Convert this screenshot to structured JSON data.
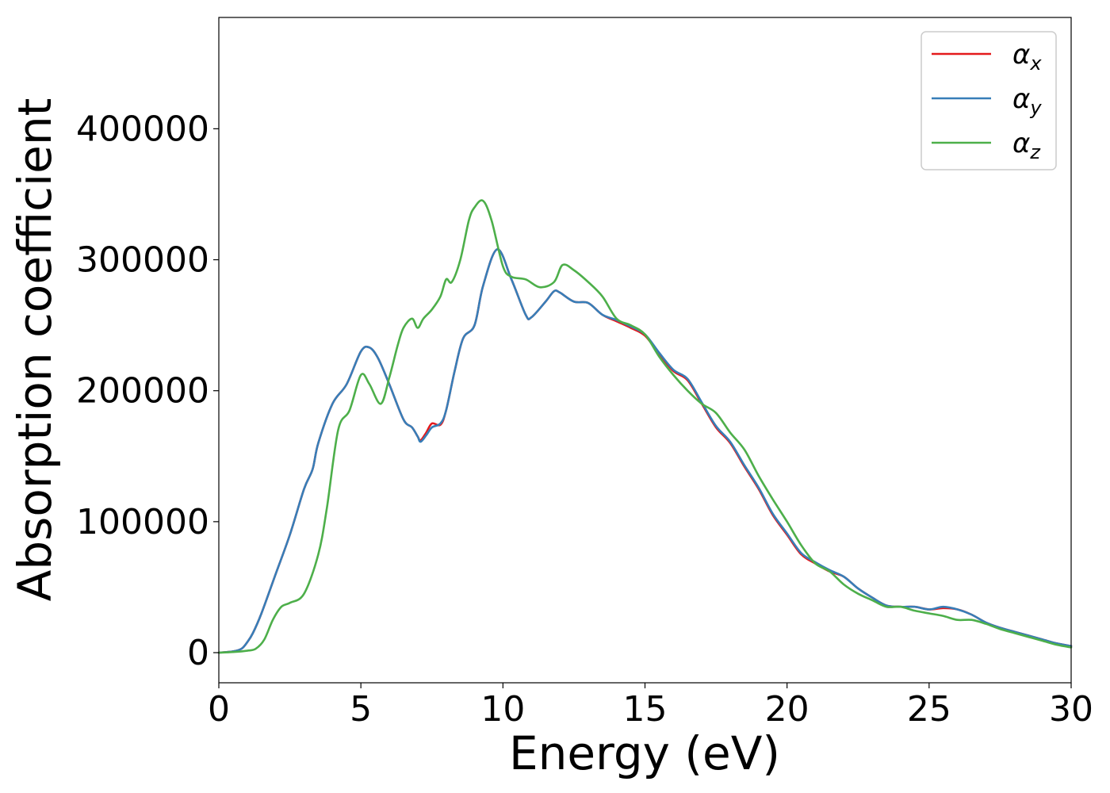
{
  "chart_data": {
    "type": "line",
    "xlabel": "Energy (eV)",
    "ylabel": "Absorption coefficient",
    "xlim": [
      0,
      30
    ],
    "ylim": [
      -23000,
      485000
    ],
    "xticks": [
      0,
      5,
      10,
      15,
      20,
      25,
      30
    ],
    "yticks": [
      0,
      100000,
      200000,
      300000,
      400000
    ],
    "grid": false,
    "legend_position": "top-right",
    "series": [
      {
        "name": "αx",
        "legend": {
          "base": "α",
          "sub": "x"
        },
        "color": "#e41a1c",
        "x": [
          0,
          0.5,
          0.8,
          1.0,
          1.2,
          1.5,
          2.0,
          2.5,
          3.0,
          3.3,
          3.5,
          4.0,
          4.5,
          5.0,
          5.3,
          5.6,
          6.0,
          6.5,
          6.8,
          7.0,
          7.1,
          7.3,
          7.5,
          7.8,
          8.0,
          8.3,
          8.6,
          9.0,
          9.3,
          9.8,
          10.3,
          10.8,
          11.0,
          11.5,
          11.8,
          12.0,
          12.5,
          13.0,
          13.5,
          14.0,
          14.5,
          15.0,
          15.5,
          16.0,
          16.5,
          17.0,
          17.5,
          18.0,
          18.5,
          19.0,
          19.5,
          20.0,
          20.5,
          21.0,
          21.5,
          22.0,
          22.5,
          23.0,
          23.5,
          24.0,
          24.5,
          25.0,
          25.5,
          26.0,
          26.5,
          27.0,
          27.5,
          28.0,
          28.5,
          29.0,
          29.5,
          30.0
        ],
        "values": [
          0,
          1000,
          3000,
          8000,
          15000,
          30000,
          60000,
          90000,
          125000,
          140000,
          160000,
          190000,
          205000,
          230000,
          233000,
          225000,
          205000,
          178000,
          172000,
          165000,
          162000,
          168000,
          175000,
          174000,
          185000,
          215000,
          240000,
          250000,
          280000,
          308000,
          285000,
          258000,
          256000,
          268000,
          276000,
          275000,
          268000,
          267000,
          258000,
          253000,
          248000,
          242000,
          228000,
          215000,
          208000,
          190000,
          172000,
          160000,
          142000,
          125000,
          105000,
          90000,
          75000,
          68000,
          62000,
          58000,
          49000,
          42000,
          36000,
          35000,
          35000,
          33000,
          34000,
          33000,
          29000,
          23000,
          19000,
          16000,
          13000,
          10000,
          7000,
          5000
        ]
      },
      {
        "name": "αy",
        "legend": {
          "base": "α",
          "sub": "y"
        },
        "color": "#377eb8",
        "x": [
          0,
          0.5,
          0.8,
          1.0,
          1.2,
          1.5,
          2.0,
          2.5,
          3.0,
          3.3,
          3.5,
          4.0,
          4.5,
          5.0,
          5.3,
          5.6,
          6.0,
          6.5,
          6.8,
          7.0,
          7.1,
          7.3,
          7.5,
          7.8,
          8.0,
          8.3,
          8.6,
          9.0,
          9.3,
          9.8,
          10.3,
          10.8,
          11.0,
          11.5,
          11.8,
          12.0,
          12.5,
          13.0,
          13.5,
          14.0,
          14.5,
          15.0,
          15.5,
          16.0,
          16.5,
          17.0,
          17.5,
          18.0,
          18.5,
          19.0,
          19.5,
          20.0,
          20.5,
          21.0,
          21.5,
          22.0,
          22.5,
          23.0,
          23.5,
          24.0,
          24.5,
          25.0,
          25.5,
          26.0,
          26.5,
          27.0,
          27.5,
          28.0,
          28.5,
          29.0,
          29.5,
          30.0
        ],
        "values": [
          0,
          1000,
          3000,
          8000,
          15000,
          30000,
          60000,
          90000,
          125000,
          140000,
          160000,
          190000,
          205000,
          230000,
          233000,
          225000,
          205000,
          178000,
          172000,
          165000,
          161000,
          166000,
          172000,
          175000,
          185000,
          215000,
          240000,
          250000,
          280000,
          308000,
          285000,
          258000,
          256000,
          268000,
          276000,
          275000,
          268000,
          267000,
          258000,
          254000,
          249000,
          243000,
          229000,
          216000,
          209000,
          191000,
          173000,
          161000,
          143000,
          126000,
          106000,
          91000,
          76000,
          69000,
          63000,
          58000,
          49000,
          42000,
          36000,
          35000,
          35000,
          33000,
          35000,
          33000,
          29000,
          23000,
          19000,
          16000,
          13000,
          10000,
          7000,
          5000
        ]
      },
      {
        "name": "αz",
        "legend": {
          "base": "α",
          "sub": "z"
        },
        "color": "#4daf4a",
        "x": [
          0,
          0.5,
          1.0,
          1.3,
          1.6,
          1.9,
          2.2,
          2.5,
          3.0,
          3.5,
          3.8,
          4.2,
          4.6,
          5.0,
          5.3,
          5.7,
          6.0,
          6.3,
          6.5,
          6.8,
          7.0,
          7.2,
          7.5,
          7.8,
          8.0,
          8.2,
          8.5,
          8.8,
          9.0,
          9.3,
          9.6,
          10.0,
          10.3,
          10.8,
          11.3,
          11.8,
          12.1,
          12.5,
          13.0,
          13.5,
          14.0,
          14.5,
          15.0,
          15.5,
          16.0,
          16.5,
          17.0,
          17.5,
          18.0,
          18.5,
          19.0,
          19.5,
          20.0,
          20.5,
          21.0,
          21.5,
          22.0,
          22.5,
          23.0,
          23.5,
          24.0,
          24.5,
          25.0,
          25.5,
          26.0,
          26.5,
          27.0,
          27.5,
          28.0,
          28.5,
          29.0,
          29.5,
          30.0
        ],
        "values": [
          0,
          500,
          1500,
          3000,
          10000,
          25000,
          35000,
          38000,
          45000,
          75000,
          110000,
          170000,
          185000,
          212000,
          205000,
          190000,
          210000,
          235000,
          248000,
          255000,
          248000,
          255000,
          262000,
          272000,
          285000,
          283000,
          300000,
          330000,
          340000,
          345000,
          330000,
          295000,
          287000,
          285000,
          279000,
          283000,
          296000,
          292000,
          283000,
          272000,
          255000,
          250000,
          243000,
          226000,
          212000,
          200000,
          190000,
          183000,
          168000,
          155000,
          135000,
          117000,
          100000,
          82000,
          68000,
          62000,
          52000,
          45000,
          40000,
          35000,
          35000,
          32000,
          30000,
          28000,
          25000,
          25000,
          22000,
          18000,
          15000,
          12000,
          9000,
          6000,
          4000
        ]
      }
    ]
  }
}
